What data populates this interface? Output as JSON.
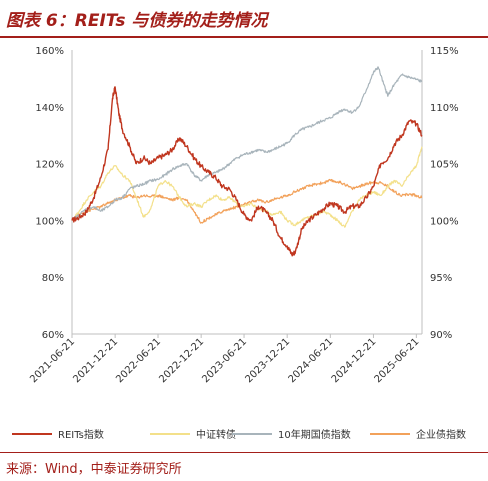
{
  "title": "图表 6：REITs 与债券的走势情况",
  "source": "来源：Wind，中泰证券研究所",
  "chart_data": {
    "type": "line",
    "x_ticks": [
      "2021-06-21",
      "2021-12-21",
      "2022-06-21",
      "2022-12-21",
      "2023-06-21",
      "2023-12-21",
      "2024-06-21",
      "2024-12-21",
      "2025-06-21"
    ],
    "x_range": [
      "2021-06-21",
      "2025-07-15"
    ],
    "y_left": {
      "range": [
        0.6,
        1.6
      ],
      "ticks": [
        "60%",
        "80%",
        "100%",
        "120%",
        "140%",
        "160%"
      ],
      "tick_values": [
        0.6,
        0.8,
        1.0,
        1.2,
        1.4,
        1.6
      ]
    },
    "y_right": {
      "range": [
        0.9,
        1.15
      ],
      "ticks": [
        "90%",
        "95%",
        "100%",
        "105%",
        "110%",
        "115%"
      ],
      "tick_values": [
        0.9,
        0.95,
        1.0,
        1.05,
        1.1,
        1.15
      ]
    },
    "grid": false,
    "legend_position": "bottom",
    "series": [
      {
        "name": "REITs指数",
        "axis": "left",
        "color": "#c0361f",
        "points": [
          [
            "2021-06-21",
            1.0
          ],
          [
            "2021-07-21",
            1.01
          ],
          [
            "2021-08-21",
            1.03
          ],
          [
            "2021-09-21",
            1.08
          ],
          [
            "2021-10-21",
            1.15
          ],
          [
            "2021-11-21",
            1.25
          ],
          [
            "2021-12-10",
            1.43
          ],
          [
            "2021-12-21",
            1.47
          ],
          [
            "2022-01-05",
            1.38
          ],
          [
            "2022-01-21",
            1.32
          ],
          [
            "2022-02-21",
            1.26
          ],
          [
            "2022-03-21",
            1.2
          ],
          [
            "2022-04-21",
            1.22
          ],
          [
            "2022-05-21",
            1.2
          ],
          [
            "2022-06-21",
            1.22
          ],
          [
            "2022-07-21",
            1.23
          ],
          [
            "2022-08-21",
            1.25
          ],
          [
            "2022-09-21",
            1.29
          ],
          [
            "2022-10-21",
            1.26
          ],
          [
            "2022-11-21",
            1.22
          ],
          [
            "2022-12-21",
            1.19
          ],
          [
            "2023-01-21",
            1.17
          ],
          [
            "2023-02-21",
            1.15
          ],
          [
            "2023-03-21",
            1.12
          ],
          [
            "2023-04-21",
            1.11
          ],
          [
            "2023-05-21",
            1.07
          ],
          [
            "2023-06-21",
            1.02
          ],
          [
            "2023-07-21",
            1.0
          ],
          [
            "2023-08-21",
            1.05
          ],
          [
            "2023-09-21",
            1.03
          ],
          [
            "2023-10-21",
            1.0
          ],
          [
            "2023-11-21",
            0.94
          ],
          [
            "2023-12-21",
            0.91
          ],
          [
            "2024-01-10",
            0.88
          ],
          [
            "2024-01-25",
            0.89
          ],
          [
            "2024-02-21",
            0.97
          ],
          [
            "2024-03-21",
            1.0
          ],
          [
            "2024-04-21",
            1.02
          ],
          [
            "2024-05-21",
            1.04
          ],
          [
            "2024-06-21",
            1.06
          ],
          [
            "2024-07-21",
            1.05
          ],
          [
            "2024-08-21",
            1.03
          ],
          [
            "2024-09-21",
            1.05
          ],
          [
            "2024-10-21",
            1.05
          ],
          [
            "2024-11-21",
            1.08
          ],
          [
            "2024-12-21",
            1.12
          ],
          [
            "2025-01-21",
            1.2
          ],
          [
            "2025-02-21",
            1.22
          ],
          [
            "2025-03-21",
            1.27
          ],
          [
            "2025-04-21",
            1.3
          ],
          [
            "2025-05-21",
            1.35
          ],
          [
            "2025-06-21",
            1.34
          ],
          [
            "2025-07-15",
            1.3
          ]
        ]
      },
      {
        "name": "中证转债",
        "axis": "right",
        "color": "#f3e08a",
        "points": [
          [
            "2021-06-21",
            1.0
          ],
          [
            "2021-07-21",
            1.008
          ],
          [
            "2021-08-21",
            1.018
          ],
          [
            "2021-09-21",
            1.025
          ],
          [
            "2021-10-21",
            1.03
          ],
          [
            "2021-11-21",
            1.042
          ],
          [
            "2021-12-21",
            1.048
          ],
          [
            "2022-01-21",
            1.04
          ],
          [
            "2022-02-21",
            1.035
          ],
          [
            "2022-03-21",
            1.02
          ],
          [
            "2022-04-21",
            1.003
          ],
          [
            "2022-05-21",
            1.01
          ],
          [
            "2022-06-21",
            1.03
          ],
          [
            "2022-07-21",
            1.035
          ],
          [
            "2022-08-21",
            1.03
          ],
          [
            "2022-09-21",
            1.02
          ],
          [
            "2022-10-21",
            1.012
          ],
          [
            "2022-11-21",
            1.015
          ],
          [
            "2022-12-21",
            1.012
          ],
          [
            "2023-01-21",
            1.018
          ],
          [
            "2023-02-21",
            1.022
          ],
          [
            "2023-03-21",
            1.018
          ],
          [
            "2023-04-21",
            1.02
          ],
          [
            "2023-05-21",
            1.015
          ],
          [
            "2023-06-21",
            1.012
          ],
          [
            "2023-07-21",
            1.015
          ],
          [
            "2023-08-21",
            1.01
          ],
          [
            "2023-09-21",
            1.008
          ],
          [
            "2023-10-21",
            1.005
          ],
          [
            "2023-11-21",
            1.008
          ],
          [
            "2023-12-21",
            1.0
          ],
          [
            "2024-01-21",
            0.996
          ],
          [
            "2024-02-21",
            1.0
          ],
          [
            "2024-03-21",
            1.003
          ],
          [
            "2024-04-21",
            1.005
          ],
          [
            "2024-05-21",
            1.008
          ],
          [
            "2024-06-21",
            1.005
          ],
          [
            "2024-07-21",
            1.0
          ],
          [
            "2024-08-21",
            0.994
          ],
          [
            "2024-09-21",
            1.008
          ],
          [
            "2024-10-21",
            1.018
          ],
          [
            "2024-11-21",
            1.022
          ],
          [
            "2024-12-21",
            1.025
          ],
          [
            "2025-01-21",
            1.022
          ],
          [
            "2025-02-21",
            1.03
          ],
          [
            "2025-03-21",
            1.035
          ],
          [
            "2025-04-21",
            1.03
          ],
          [
            "2025-05-21",
            1.04
          ],
          [
            "2025-06-21",
            1.048
          ],
          [
            "2025-07-15",
            1.065
          ]
        ]
      },
      {
        "name": "10年期国债指数",
        "axis": "right",
        "color": "#a8b4bb",
        "points": [
          [
            "2021-06-21",
            1.0
          ],
          [
            "2021-07-21",
            1.005
          ],
          [
            "2021-08-21",
            1.01
          ],
          [
            "2021-09-21",
            1.012
          ],
          [
            "2021-10-21",
            1.008
          ],
          [
            "2021-11-21",
            1.012
          ],
          [
            "2021-12-21",
            1.018
          ],
          [
            "2022-01-21",
            1.02
          ],
          [
            "2022-02-21",
            1.028
          ],
          [
            "2022-03-21",
            1.03
          ],
          [
            "2022-04-21",
            1.032
          ],
          [
            "2022-05-21",
            1.035
          ],
          [
            "2022-06-21",
            1.036
          ],
          [
            "2022-07-21",
            1.04
          ],
          [
            "2022-08-21",
            1.045
          ],
          [
            "2022-09-21",
            1.048
          ],
          [
            "2022-10-21",
            1.05
          ],
          [
            "2022-11-21",
            1.04
          ],
          [
            "2022-12-21",
            1.035
          ],
          [
            "2023-01-21",
            1.04
          ],
          [
            "2023-02-21",
            1.042
          ],
          [
            "2023-03-21",
            1.045
          ],
          [
            "2023-04-21",
            1.05
          ],
          [
            "2023-05-21",
            1.055
          ],
          [
            "2023-06-21",
            1.058
          ],
          [
            "2023-07-21",
            1.06
          ],
          [
            "2023-08-21",
            1.062
          ],
          [
            "2023-09-21",
            1.06
          ],
          [
            "2023-10-21",
            1.062
          ],
          [
            "2023-11-21",
            1.065
          ],
          [
            "2023-12-21",
            1.068
          ],
          [
            "2024-01-21",
            1.075
          ],
          [
            "2024-02-21",
            1.08
          ],
          [
            "2024-03-21",
            1.082
          ],
          [
            "2024-04-21",
            1.085
          ],
          [
            "2024-05-21",
            1.088
          ],
          [
            "2024-06-21",
            1.09
          ],
          [
            "2024-07-21",
            1.095
          ],
          [
            "2024-08-21",
            1.098
          ],
          [
            "2024-09-21",
            1.095
          ],
          [
            "2024-10-21",
            1.1
          ],
          [
            "2024-11-21",
            1.115
          ],
          [
            "2024-12-21",
            1.13
          ],
          [
            "2025-01-10",
            1.135
          ],
          [
            "2025-02-10",
            1.115
          ],
          [
            "2025-02-21",
            1.11
          ],
          [
            "2025-03-21",
            1.12
          ],
          [
            "2025-04-21",
            1.128
          ],
          [
            "2025-05-21",
            1.126
          ],
          [
            "2025-06-21",
            1.124
          ],
          [
            "2025-07-15",
            1.122
          ]
        ]
      },
      {
        "name": "企业债指数",
        "axis": "right",
        "color": "#f2a15a",
        "points": [
          [
            "2021-06-21",
            1.0
          ],
          [
            "2021-07-21",
            1.005
          ],
          [
            "2021-08-21",
            1.008
          ],
          [
            "2021-09-21",
            1.01
          ],
          [
            "2021-10-21",
            1.012
          ],
          [
            "2021-11-21",
            1.015
          ],
          [
            "2021-12-21",
            1.018
          ],
          [
            "2022-01-21",
            1.02
          ],
          [
            "2022-02-21",
            1.022
          ],
          [
            "2022-03-21",
            1.02
          ],
          [
            "2022-04-21",
            1.022
          ],
          [
            "2022-05-21",
            1.021
          ],
          [
            "2022-06-21",
            1.022
          ],
          [
            "2022-07-21",
            1.02
          ],
          [
            "2022-08-21",
            1.018
          ],
          [
            "2022-09-21",
            1.02
          ],
          [
            "2022-10-21",
            1.018
          ],
          [
            "2022-11-21",
            1.008
          ],
          [
            "2022-12-21",
            0.998
          ],
          [
            "2023-01-21",
            1.002
          ],
          [
            "2023-02-21",
            1.005
          ],
          [
            "2023-03-21",
            1.008
          ],
          [
            "2023-04-21",
            1.01
          ],
          [
            "2023-05-21",
            1.012
          ],
          [
            "2023-06-21",
            1.014
          ],
          [
            "2023-07-21",
            1.016
          ],
          [
            "2023-08-21",
            1.018
          ],
          [
            "2023-09-21",
            1.016
          ],
          [
            "2023-10-21",
            1.018
          ],
          [
            "2023-11-21",
            1.02
          ],
          [
            "2023-12-21",
            1.022
          ],
          [
            "2024-01-21",
            1.025
          ],
          [
            "2024-02-21",
            1.028
          ],
          [
            "2024-03-21",
            1.03
          ],
          [
            "2024-04-21",
            1.032
          ],
          [
            "2024-05-21",
            1.033
          ],
          [
            "2024-06-21",
            1.035
          ],
          [
            "2024-07-21",
            1.034
          ],
          [
            "2024-08-21",
            1.032
          ],
          [
            "2024-09-21",
            1.028
          ],
          [
            "2024-10-21",
            1.03
          ],
          [
            "2024-11-21",
            1.032
          ],
          [
            "2024-12-21",
            1.034
          ],
          [
            "2025-01-21",
            1.033
          ],
          [
            "2025-02-21",
            1.03
          ],
          [
            "2025-03-21",
            1.025
          ],
          [
            "2025-04-21",
            1.022
          ],
          [
            "2025-05-21",
            1.023
          ],
          [
            "2025-06-21",
            1.022
          ],
          [
            "2025-07-15",
            1.02
          ]
        ]
      }
    ]
  }
}
